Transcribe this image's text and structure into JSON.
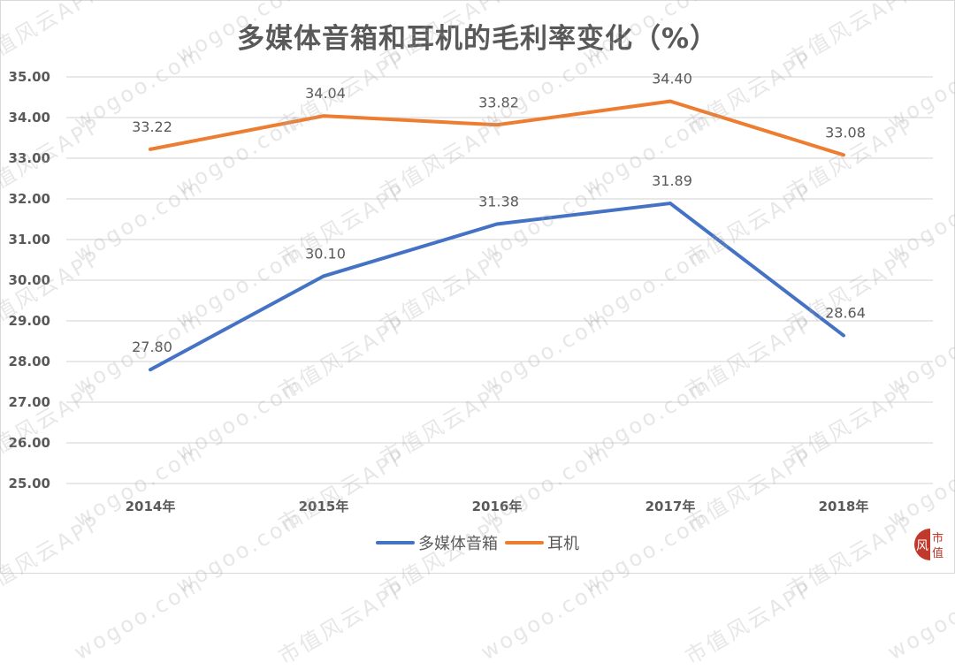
{
  "chart_data": {
    "type": "line",
    "title": "多媒体音箱和耳机的毛利率变化（%）",
    "categories": [
      "2014年",
      "2015年",
      "2016年",
      "2017年",
      "2018年"
    ],
    "series": [
      {
        "name": "多媒体音箱",
        "color": "#4472C4",
        "values": [
          27.8,
          30.1,
          31.38,
          31.89,
          28.64
        ],
        "labels": [
          "27.80",
          "30.10",
          "31.38",
          "31.89",
          "28.64"
        ]
      },
      {
        "name": "耳机",
        "color": "#ED7D31",
        "values": [
          33.22,
          34.04,
          33.82,
          34.4,
          33.08
        ],
        "labels": [
          "33.22",
          "34.04",
          "33.82",
          "34.40",
          "33.08"
        ]
      }
    ],
    "xlabel": "",
    "ylabel": "",
    "ylim": [
      25,
      35
    ],
    "yticks": [
      "35.00",
      "34.00",
      "33.00",
      "32.00",
      "31.00",
      "30.00",
      "29.00",
      "28.00",
      "27.00",
      "26.00",
      "25.00"
    ],
    "grid": true,
    "legend_position": "bottom"
  },
  "watermark": {
    "text_a": "市值风云APP",
    "text_b": "wogoo.com"
  },
  "logo": {
    "char1": "风",
    "char2": "市",
    "char3": "值"
  }
}
